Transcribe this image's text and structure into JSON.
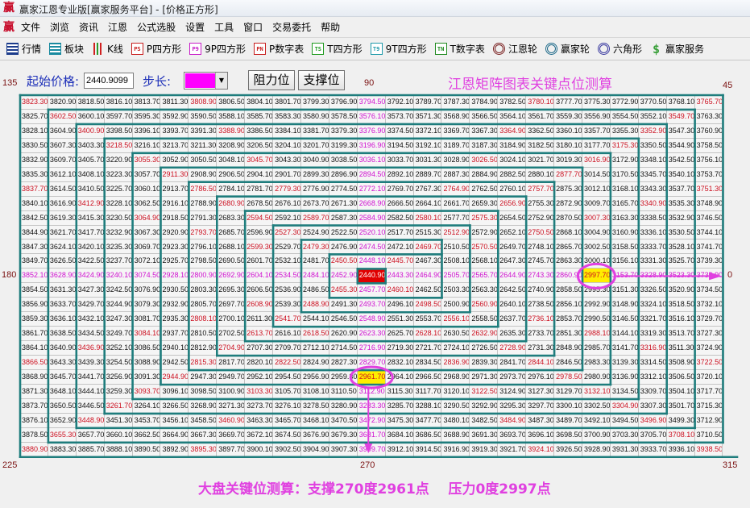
{
  "window": {
    "title": "赢家江恩专业版[赢家服务平台] - [价格正方形]",
    "logo": "赢"
  },
  "menu": [
    "文件",
    "浏览",
    "资讯",
    "江恩",
    "公式选股",
    "设置",
    "工具",
    "窗口",
    "交易委托",
    "帮助"
  ],
  "toolbar": [
    {
      "label": "行情",
      "icon": "grid-table-icon",
      "glyph": "",
      "color": "#1c3c8c",
      "kind": "box"
    },
    {
      "label": "板块",
      "icon": "blocks-icon",
      "glyph": "",
      "color": "#1a8aa0",
      "kind": "box"
    },
    {
      "label": "K线",
      "icon": "candlestick-icon",
      "glyph": "",
      "color": "#d02020",
      "kind": "candle"
    },
    {
      "label": "P四方形",
      "icon": "ps-square-icon",
      "glyph": "PS",
      "color": "#c81e1e",
      "kind": "box"
    },
    {
      "label": "9P四方形",
      "icon": "p9-square-icon",
      "glyph": "P9",
      "color": "#c81ec8",
      "kind": "box"
    },
    {
      "label": "P数字表",
      "icon": "pn-table-icon",
      "glyph": "PN",
      "color": "#c81e1e",
      "kind": "box"
    },
    {
      "label": "T四方形",
      "icon": "ts-square-icon",
      "glyph": "TS",
      "color": "#1e9a1e",
      "kind": "box"
    },
    {
      "label": "9T四方形",
      "icon": "t9-square-icon",
      "glyph": "T9",
      "color": "#1e9aaa",
      "kind": "box"
    },
    {
      "label": "T数字表",
      "icon": "tn-table-icon",
      "glyph": "TN",
      "color": "#1e8a1e",
      "kind": "box"
    },
    {
      "label": "江恩轮",
      "icon": "gann-wheel-icon",
      "glyph": "",
      "color": "#7a2020",
      "kind": "ring"
    },
    {
      "label": "赢家轮",
      "icon": "winner-wheel-icon",
      "glyph": "",
      "color": "#1e6a8a",
      "kind": "ring"
    },
    {
      "label": "六角形",
      "icon": "hexagon-icon",
      "glyph": "",
      "color": "#3a3aa0",
      "kind": "ring"
    },
    {
      "label": "赢家服务",
      "icon": "dollar-icon",
      "glyph": "$",
      "color": "#3aa03a",
      "kind": "text"
    }
  ],
  "controls": {
    "start_label": "起始价格:",
    "start_value": "2440.9099",
    "step_label": "步长:",
    "step_color": "#ff00ff",
    "resistance_button": "阻力位",
    "support_button": "支撑位",
    "heading": "江恩矩阵图表关键点位测算"
  },
  "angles": {
    "a135": "135",
    "a90": "90",
    "a45": "45",
    "a180": "180",
    "a0": "0",
    "a225": "225",
    "a270": "270",
    "a315": "315"
  },
  "grid": {
    "start_price": "2440.9099",
    "step": 2.4,
    "size": 25,
    "colors": {
      "normal": "#111111",
      "key_point": "#cc1020",
      "axis": "#d010d0",
      "center_bg": "#e00000",
      "highlight_bg": "#ffee00",
      "spiral_line": "#1f7d7d"
    },
    "highlighted": [
      "2997.70",
      "2961.70"
    ]
  },
  "annotation": {
    "caption": "大盘关键位测算：支撑270度2961点    压力0度2997点",
    "marker_color": "#e040e0",
    "support_value": "2961.70",
    "resistance_value": "2997.70"
  }
}
